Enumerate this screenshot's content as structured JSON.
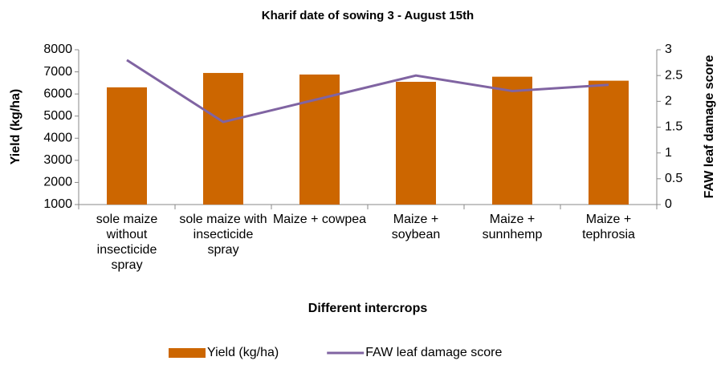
{
  "chart_data": {
    "type": "bar",
    "title": "Kharif date of sowing 3 - August 15th",
    "x_label": "Different intercrops",
    "y_label": "Yield (kg/ha)",
    "y2_label": "FAW leaf damage score",
    "categories": [
      "sole maize without insecticide spray",
      "sole maize with insecticide spray",
      "Maize + cowpea",
      "Maize + soybean",
      "Maize + sunnhemp",
      "Maize + tephrosia"
    ],
    "series": [
      {
        "name": "Yield (kg/ha)",
        "type": "bar",
        "color": "#cc6600",
        "values": [
          6300,
          6950,
          6880,
          6550,
          6780,
          6600
        ]
      },
      {
        "name": "FAW leaf damage score",
        "type": "line",
        "axis": "y2",
        "color": "#8064a2",
        "values": [
          2.8,
          1.6,
          2.05,
          2.5,
          2.2,
          2.32
        ]
      }
    ],
    "ylim": [
      1000,
      8000
    ],
    "yticks": [
      1000,
      2000,
      3000,
      4000,
      5000,
      6000,
      7000,
      8000
    ],
    "y2lim": [
      0,
      3
    ],
    "y2ticks": [
      0,
      0.5,
      1,
      1.5,
      2,
      2.5,
      3
    ],
    "legend": "bottom"
  }
}
